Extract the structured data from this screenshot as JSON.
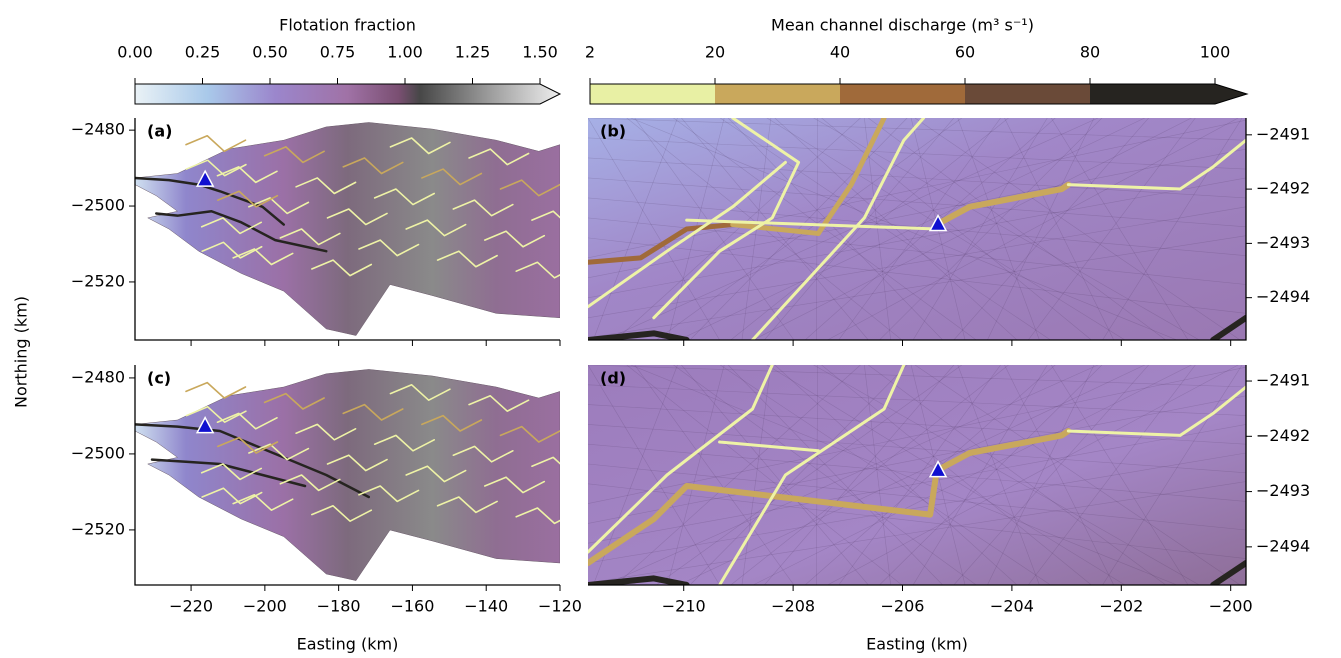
{
  "colorbars": {
    "flotation": {
      "label": "Flotation fraction",
      "lim": [
        0,
        1.5
      ],
      "ticks": [
        {
          "value": 0,
          "label": "0.00"
        },
        {
          "value": 0.25,
          "label": "0.25"
        },
        {
          "value": 0.5,
          "label": "0.50"
        },
        {
          "value": 0.75,
          "label": "0.75"
        },
        {
          "value": 1,
          "label": "1.00"
        },
        {
          "value": 1.25,
          "label": "1.25"
        },
        {
          "value": 1.5,
          "label": "1.50"
        }
      ]
    },
    "discharge": {
      "label": "Mean channel discharge (m³ s⁻¹)",
      "ticks": [
        2,
        20,
        40,
        60,
        80,
        100
      ],
      "colors": [
        "#e8f0a4",
        "#c9a85c",
        "#a06a3a",
        "#6a4a38",
        "#262420"
      ]
    }
  },
  "left_x": {
    "label": "Easting (km)",
    "xlim": [
      -235.2,
      -120
    ],
    "xticks": [
      {
        "value": -220,
        "label": "−220"
      },
      {
        "value": -200,
        "label": "−200"
      },
      {
        "value": -180,
        "label": "−180"
      },
      {
        "value": -160,
        "label": "−160"
      },
      {
        "value": -140,
        "label": "−140"
      },
      {
        "value": -120,
        "label": "−120"
      }
    ]
  },
  "right_x": {
    "label": "Easting (km)",
    "xlim": [
      -211.75,
      -199.72
    ],
    "xticks": [
      {
        "value": -210,
        "label": "−210"
      },
      {
        "value": -208,
        "label": "−208"
      },
      {
        "value": -206,
        "label": "−206"
      },
      {
        "value": -204,
        "label": "−204"
      },
      {
        "value": -202,
        "label": "−202"
      },
      {
        "value": -200,
        "label": "−200"
      }
    ]
  },
  "ylabel": "Northing (km)",
  "panels": [
    {
      "label": "(a)",
      "side": "left",
      "row": 0,
      "ylim": [
        -2535.3,
        -2476.8
      ],
      "yticks": [
        {
          "value": -2480,
          "label": "−2480"
        },
        {
          "value": -2500,
          "label": "−2500"
        },
        {
          "value": -2520,
          "label": "−2520"
        }
      ]
    },
    {
      "label": "(b)",
      "side": "right",
      "row": 0,
      "ylim": [
        -2494.78,
        -2490.69
      ],
      "yticks": [
        {
          "value": -2491,
          "label": "−2491"
        },
        {
          "value": -2492,
          "label": "−2492"
        },
        {
          "value": -2493,
          "label": "−2493"
        },
        {
          "value": -2494,
          "label": "−2494"
        }
      ]
    },
    {
      "label": "(c)",
      "side": "left",
      "row": 1,
      "ylim": [
        -2534.5,
        -2476.6
      ],
      "yticks": [
        {
          "value": -2480,
          "label": "−2480"
        },
        {
          "value": -2500,
          "label": "−2500"
        },
        {
          "value": -2520,
          "label": "−2520"
        }
      ]
    },
    {
      "label": "(d)",
      "side": "right",
      "row": 1,
      "ylim": [
        -2494.69,
        -2490.71
      ],
      "yticks": [
        {
          "value": -2491,
          "label": "−2491"
        },
        {
          "value": -2492,
          "label": "−2492"
        },
        {
          "value": -2493,
          "label": "−2493"
        },
        {
          "value": -2494,
          "label": "−2494"
        }
      ]
    }
  ]
}
